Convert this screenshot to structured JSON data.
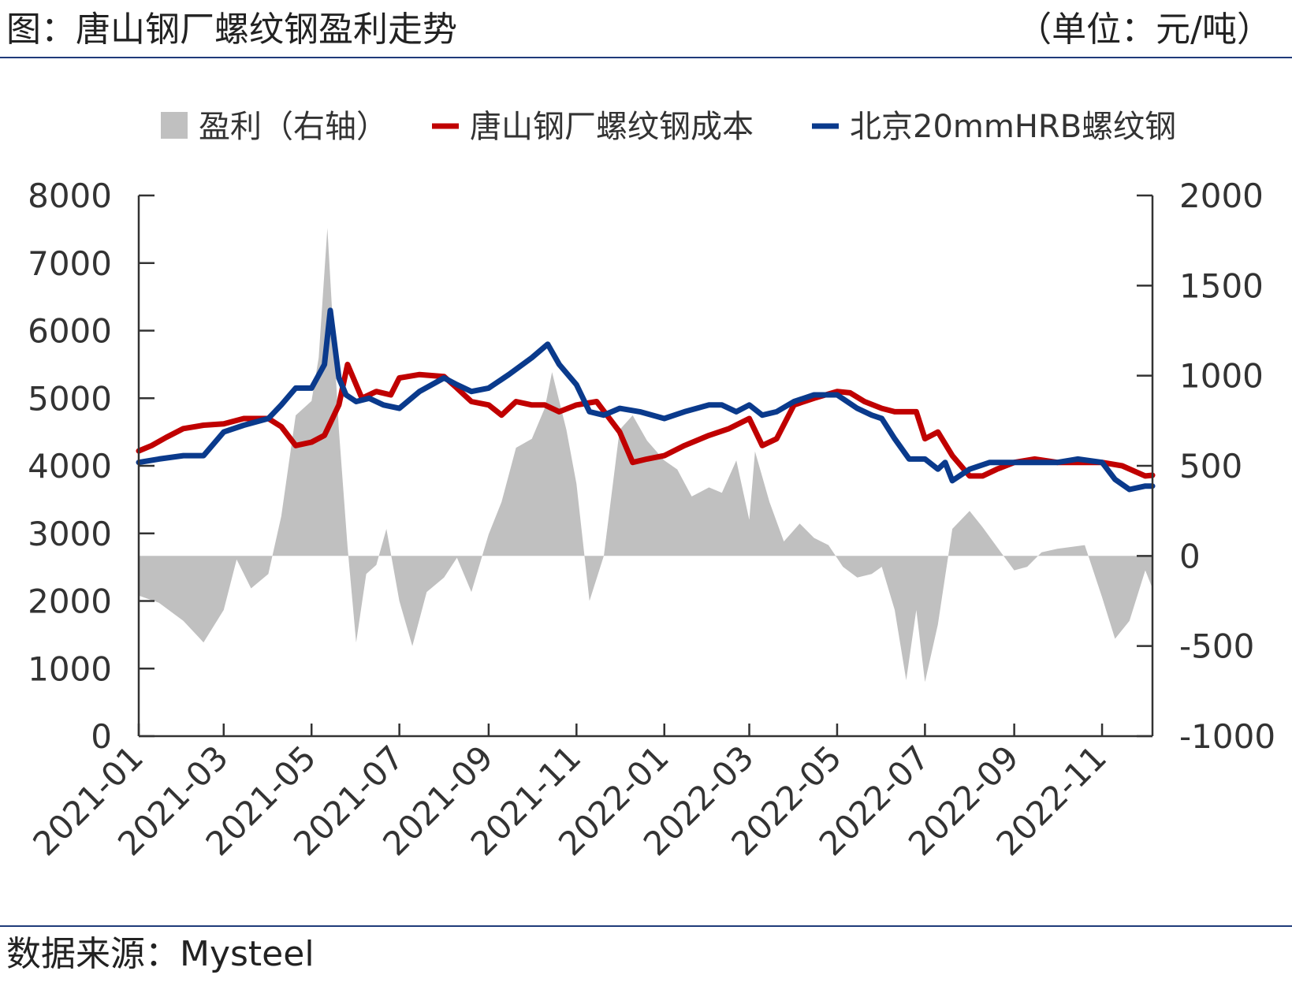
{
  "header": {
    "title": "图：唐山钢厂螺纹钢盈利走势",
    "unit": "（单位：元/吨）"
  },
  "footer": {
    "source": "数据来源：Mysteel"
  },
  "colors": {
    "profit": "#c0c0c0",
    "cost": "#c00000",
    "price": "#0a3a8c",
    "axis": "#333333",
    "rule": "#1f3b7a"
  },
  "chart_data": {
    "type": "line",
    "legend_position": "top",
    "grid": false,
    "x_ticks": [
      "2021-01",
      "2021-03",
      "2021-05",
      "2021-07",
      "2021-09",
      "2021-11",
      "2022-01",
      "2022-03",
      "2022-05",
      "2022-07",
      "2022-09",
      "2022-11"
    ],
    "y_left": {
      "min": 0,
      "max": 8000,
      "ticks": [
        0,
        1000,
        2000,
        3000,
        4000,
        5000,
        6000,
        7000,
        8000
      ]
    },
    "y_right": {
      "min": -1000,
      "max": 2000,
      "ticks": [
        -1000,
        -500,
        0,
        500,
        1000,
        1500,
        2000
      ]
    },
    "series": [
      {
        "name": "盈利（右轴）",
        "kind": "area",
        "axis": "right",
        "points": [
          [
            "2021-01-01",
            -220
          ],
          [
            "2021-01-15",
            -260
          ],
          [
            "2021-02-01",
            -360
          ],
          [
            "2021-02-15",
            -480
          ],
          [
            "2021-03-01",
            -300
          ],
          [
            "2021-03-10",
            -20
          ],
          [
            "2021-03-20",
            -180
          ],
          [
            "2021-04-01",
            -100
          ],
          [
            "2021-04-10",
            220
          ],
          [
            "2021-04-20",
            780
          ],
          [
            "2021-05-01",
            860
          ],
          [
            "2021-05-06",
            1100
          ],
          [
            "2021-05-12",
            1820
          ],
          [
            "2021-05-20",
            700
          ],
          [
            "2021-05-26",
            50
          ],
          [
            "2021-06-01",
            -480
          ],
          [
            "2021-06-08",
            -100
          ],
          [
            "2021-06-15",
            -50
          ],
          [
            "2021-06-22",
            150
          ],
          [
            "2021-07-01",
            -250
          ],
          [
            "2021-07-10",
            -500
          ],
          [
            "2021-07-20",
            -200
          ],
          [
            "2021-08-01",
            -120
          ],
          [
            "2021-08-10",
            -10
          ],
          [
            "2021-08-20",
            -200
          ],
          [
            "2021-09-01",
            120
          ],
          [
            "2021-09-10",
            300
          ],
          [
            "2021-09-20",
            600
          ],
          [
            "2021-10-01",
            650
          ],
          [
            "2021-10-10",
            820
          ],
          [
            "2021-10-15",
            1020
          ],
          [
            "2021-10-25",
            700
          ],
          [
            "2021-11-01",
            400
          ],
          [
            "2021-11-10",
            -250
          ],
          [
            "2021-11-20",
            0
          ],
          [
            "2021-12-01",
            700
          ],
          [
            "2021-12-10",
            780
          ],
          [
            "2021-12-20",
            640
          ],
          [
            "2022-01-01",
            530
          ],
          [
            "2022-01-10",
            480
          ],
          [
            "2022-01-20",
            330
          ],
          [
            "2022-02-01",
            380
          ],
          [
            "2022-02-10",
            350
          ],
          [
            "2022-02-20",
            530
          ],
          [
            "2022-03-01",
            200
          ],
          [
            "2022-03-05",
            580
          ],
          [
            "2022-03-15",
            300
          ],
          [
            "2022-03-25",
            80
          ],
          [
            "2022-04-05",
            180
          ],
          [
            "2022-04-15",
            100
          ],
          [
            "2022-04-25",
            60
          ],
          [
            "2022-05-05",
            -60
          ],
          [
            "2022-05-15",
            -120
          ],
          [
            "2022-05-25",
            -100
          ],
          [
            "2022-06-01",
            -60
          ],
          [
            "2022-06-10",
            -300
          ],
          [
            "2022-06-18",
            -690
          ],
          [
            "2022-06-25",
            -300
          ],
          [
            "2022-07-01",
            -700
          ],
          [
            "2022-07-10",
            -380
          ],
          [
            "2022-07-20",
            150
          ],
          [
            "2022-08-01",
            250
          ],
          [
            "2022-08-10",
            160
          ],
          [
            "2022-08-20",
            50
          ],
          [
            "2022-09-01",
            -80
          ],
          [
            "2022-09-10",
            -60
          ],
          [
            "2022-09-20",
            20
          ],
          [
            "2022-10-01",
            40
          ],
          [
            "2022-10-20",
            60
          ],
          [
            "2022-11-01",
            -230
          ],
          [
            "2022-11-10",
            -460
          ],
          [
            "2022-11-20",
            -360
          ],
          [
            "2022-12-01",
            -80
          ],
          [
            "2022-12-06",
            -180
          ]
        ]
      },
      {
        "name": "唐山钢厂螺纹钢成本",
        "kind": "line",
        "axis": "left",
        "points": [
          [
            "2021-01-01",
            4220
          ],
          [
            "2021-01-10",
            4300
          ],
          [
            "2021-01-20",
            4420
          ],
          [
            "2021-02-01",
            4550
          ],
          [
            "2021-02-15",
            4600
          ],
          [
            "2021-03-01",
            4620
          ],
          [
            "2021-03-15",
            4700
          ],
          [
            "2021-04-01",
            4700
          ],
          [
            "2021-04-10",
            4580
          ],
          [
            "2021-04-20",
            4300
          ],
          [
            "2021-05-01",
            4350
          ],
          [
            "2021-05-10",
            4450
          ],
          [
            "2021-05-20",
            4900
          ],
          [
            "2021-05-26",
            5500
          ],
          [
            "2021-06-05",
            5000
          ],
          [
            "2021-06-15",
            5100
          ],
          [
            "2021-06-25",
            5050
          ],
          [
            "2021-07-01",
            5300
          ],
          [
            "2021-07-15",
            5350
          ],
          [
            "2021-08-01",
            5320
          ],
          [
            "2021-08-10",
            5150
          ],
          [
            "2021-08-20",
            4950
          ],
          [
            "2021-09-01",
            4900
          ],
          [
            "2021-09-10",
            4750
          ],
          [
            "2021-09-20",
            4950
          ],
          [
            "2021-10-01",
            4900
          ],
          [
            "2021-10-10",
            4900
          ],
          [
            "2021-10-20",
            4800
          ],
          [
            "2021-11-01",
            4900
          ],
          [
            "2021-11-15",
            4950
          ],
          [
            "2021-12-01",
            4500
          ],
          [
            "2021-12-10",
            4050
          ],
          [
            "2021-12-20",
            4100
          ],
          [
            "2022-01-01",
            4150
          ],
          [
            "2022-01-15",
            4300
          ],
          [
            "2022-02-01",
            4450
          ],
          [
            "2022-02-15",
            4550
          ],
          [
            "2022-03-01",
            4700
          ],
          [
            "2022-03-10",
            4300
          ],
          [
            "2022-03-20",
            4400
          ],
          [
            "2022-04-01",
            4900
          ],
          [
            "2022-04-15",
            5000
          ],
          [
            "2022-05-01",
            5100
          ],
          [
            "2022-05-10",
            5080
          ],
          [
            "2022-05-20",
            4950
          ],
          [
            "2022-06-01",
            4850
          ],
          [
            "2022-06-10",
            4800
          ],
          [
            "2022-06-25",
            4800
          ],
          [
            "2022-07-01",
            4400
          ],
          [
            "2022-07-10",
            4500
          ],
          [
            "2022-07-20",
            4150
          ],
          [
            "2022-08-01",
            3850
          ],
          [
            "2022-08-10",
            3850
          ],
          [
            "2022-08-20",
            3950
          ],
          [
            "2022-09-01",
            4050
          ],
          [
            "2022-09-15",
            4100
          ],
          [
            "2022-10-01",
            4050
          ],
          [
            "2022-10-15",
            4050
          ],
          [
            "2022-11-01",
            4050
          ],
          [
            "2022-11-15",
            4000
          ],
          [
            "2022-12-01",
            3850
          ],
          [
            "2022-12-06",
            3860
          ]
        ]
      },
      {
        "name": "北京20mmHRB螺纹钢",
        "kind": "line",
        "axis": "left",
        "points": [
          [
            "2021-01-01",
            4050
          ],
          [
            "2021-01-15",
            4100
          ],
          [
            "2021-02-01",
            4150
          ],
          [
            "2021-02-15",
            4150
          ],
          [
            "2021-03-01",
            4500
          ],
          [
            "2021-03-15",
            4600
          ],
          [
            "2021-04-01",
            4700
          ],
          [
            "2021-04-10",
            4900
          ],
          [
            "2021-04-20",
            5150
          ],
          [
            "2021-05-01",
            5150
          ],
          [
            "2021-05-10",
            5500
          ],
          [
            "2021-05-14",
            6300
          ],
          [
            "2021-05-20",
            5300
          ],
          [
            "2021-05-25",
            5050
          ],
          [
            "2021-06-01",
            4950
          ],
          [
            "2021-06-10",
            5000
          ],
          [
            "2021-06-20",
            4900
          ],
          [
            "2021-07-01",
            4850
          ],
          [
            "2021-07-15",
            5100
          ],
          [
            "2021-08-01",
            5300
          ],
          [
            "2021-08-10",
            5200
          ],
          [
            "2021-08-20",
            5100
          ],
          [
            "2021-09-01",
            5150
          ],
          [
            "2021-09-15",
            5350
          ],
          [
            "2021-10-01",
            5600
          ],
          [
            "2021-10-12",
            5800
          ],
          [
            "2021-10-20",
            5500
          ],
          [
            "2021-11-01",
            5200
          ],
          [
            "2021-11-10",
            4800
          ],
          [
            "2021-11-20",
            4750
          ],
          [
            "2021-12-01",
            4850
          ],
          [
            "2021-12-15",
            4800
          ],
          [
            "2022-01-01",
            4700
          ],
          [
            "2022-01-15",
            4800
          ],
          [
            "2022-02-01",
            4900
          ],
          [
            "2022-02-10",
            4900
          ],
          [
            "2022-02-20",
            4800
          ],
          [
            "2022-03-01",
            4900
          ],
          [
            "2022-03-10",
            4750
          ],
          [
            "2022-03-20",
            4800
          ],
          [
            "2022-04-01",
            4950
          ],
          [
            "2022-04-15",
            5050
          ],
          [
            "2022-05-01",
            5050
          ],
          [
            "2022-05-15",
            4850
          ],
          [
            "2022-05-25",
            4750
          ],
          [
            "2022-06-01",
            4700
          ],
          [
            "2022-06-10",
            4400
          ],
          [
            "2022-06-20",
            4100
          ],
          [
            "2022-07-01",
            4100
          ],
          [
            "2022-07-10",
            3950
          ],
          [
            "2022-07-15",
            4050
          ],
          [
            "2022-07-20",
            3780
          ],
          [
            "2022-08-01",
            3950
          ],
          [
            "2022-08-15",
            4050
          ],
          [
            "2022-09-01",
            4050
          ],
          [
            "2022-09-15",
            4050
          ],
          [
            "2022-10-01",
            4050
          ],
          [
            "2022-10-15",
            4100
          ],
          [
            "2022-11-01",
            4050
          ],
          [
            "2022-11-10",
            3800
          ],
          [
            "2022-11-20",
            3650
          ],
          [
            "2022-12-01",
            3700
          ],
          [
            "2022-12-06",
            3700
          ]
        ]
      }
    ]
  }
}
